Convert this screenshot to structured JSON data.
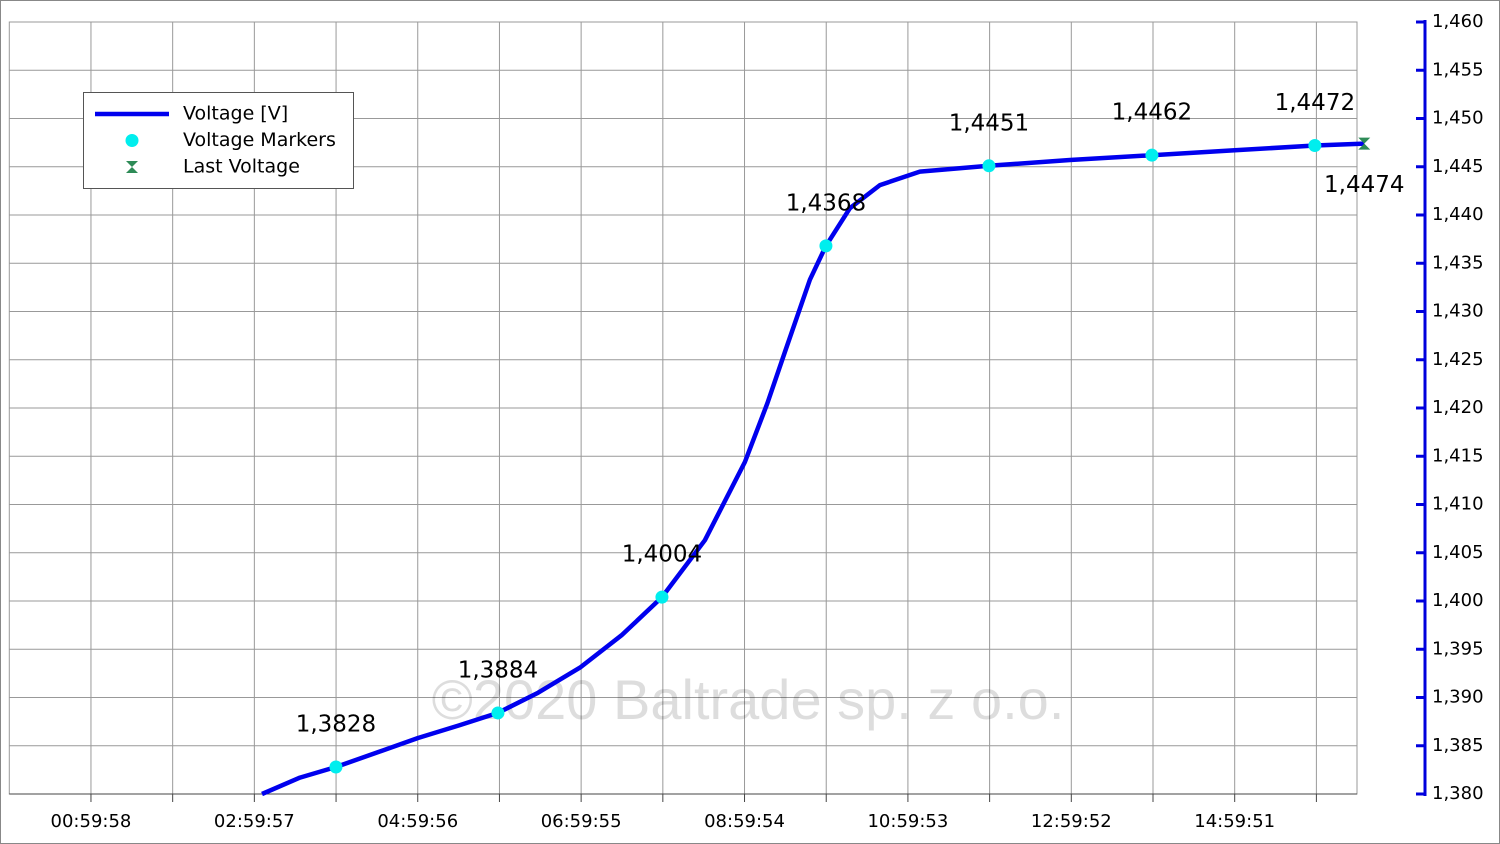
{
  "chart_data": {
    "type": "line",
    "watermark": "©2020 Baltrade sp. z o.o.",
    "xlim": [
      0,
      59380
    ],
    "xticks": [
      {
        "value": 3598,
        "label": "00:59:58"
      },
      {
        "value": 7198,
        "label": null
      },
      {
        "value": 10797,
        "label": "02:59:57"
      },
      {
        "value": 14397,
        "label": null
      },
      {
        "value": 17996,
        "label": "04:59:56"
      },
      {
        "value": 21596,
        "label": null
      },
      {
        "value": 25195,
        "label": "06:59:55"
      },
      {
        "value": 28795,
        "label": null
      },
      {
        "value": 32394,
        "label": "08:59:54"
      },
      {
        "value": 35994,
        "label": null
      },
      {
        "value": 39593,
        "label": "10:59:53"
      },
      {
        "value": 43193,
        "label": null
      },
      {
        "value": 46792,
        "label": "12:59:52"
      },
      {
        "value": 50392,
        "label": null
      },
      {
        "value": 53991,
        "label": "14:59:51"
      },
      {
        "value": 57591,
        "label": null
      }
    ],
    "ylim": [
      1.38,
      1.46
    ],
    "yticks": [
      {
        "value": 1.38,
        "label": "1,380"
      },
      {
        "value": 1.385,
        "label": "1,385"
      },
      {
        "value": 1.39,
        "label": "1,390"
      },
      {
        "value": 1.395,
        "label": "1,395"
      },
      {
        "value": 1.4,
        "label": "1,400"
      },
      {
        "value": 1.405,
        "label": "1,405"
      },
      {
        "value": 1.41,
        "label": "1,410"
      },
      {
        "value": 1.415,
        "label": "1,415"
      },
      {
        "value": 1.42,
        "label": "1,420"
      },
      {
        "value": 1.425,
        "label": "1,425"
      },
      {
        "value": 1.43,
        "label": "1,430"
      },
      {
        "value": 1.435,
        "label": "1,435"
      },
      {
        "value": 1.44,
        "label": "1,440"
      },
      {
        "value": 1.445,
        "label": "1,445"
      },
      {
        "value": 1.45,
        "label": "1,450"
      },
      {
        "value": 1.455,
        "label": "1,455"
      },
      {
        "value": 1.46,
        "label": "1,460"
      }
    ],
    "y_axis_side": "right",
    "y_axis_color": "#0000dd",
    "grid": true,
    "legend": "upper left",
    "series": [
      {
        "name": "Voltage [V]",
        "color": "#0000ee",
        "style": "line",
        "x": [
          11133,
          12807,
          14392,
          16200,
          18006,
          19800,
          21530,
          23300,
          25143,
          27000,
          28756,
          30650,
          32412,
          33400,
          34175,
          35276,
          35981,
          37039,
          38361,
          40123,
          43163,
          46732,
          50344,
          53998,
          57523,
          59700
        ],
        "values": [
          1.38,
          1.3817,
          1.3828,
          1.3843,
          1.3858,
          1.3871,
          1.3884,
          1.3905,
          1.3931,
          1.3965,
          1.4004,
          1.4063,
          1.4144,
          1.4205,
          1.4258,
          1.4333,
          1.4368,
          1.4407,
          1.4431,
          1.4445,
          1.4451,
          1.4457,
          1.4462,
          1.4467,
          1.4472,
          1.4474
        ]
      },
      {
        "name": "Voltage Markers",
        "color": "#00eeee",
        "style": "circle",
        "x": [
          14392,
          21530,
          28756,
          35981,
          43163,
          50344,
          57523
        ],
        "values": [
          1.3828,
          1.3884,
          1.4004,
          1.4368,
          1.4451,
          1.4462,
          1.4472
        ],
        "value_labels": [
          "1,3828",
          "1,3884",
          "1,4004",
          "1,4368",
          "1,4451",
          "1,4462",
          "1,4472"
        ]
      },
      {
        "name": "Last Voltage",
        "color": "#2e8b57",
        "style": "hourglass",
        "x": [
          59700
        ],
        "values": [
          1.4474
        ],
        "value_labels": [
          "1,4474"
        ]
      }
    ]
  }
}
